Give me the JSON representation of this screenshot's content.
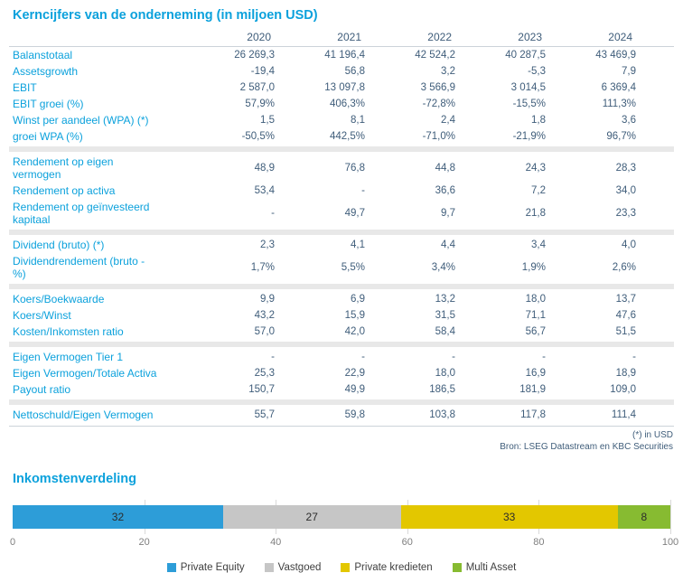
{
  "page": {
    "table_title": "Kerncijfers van de onderneming (in miljoen USD)",
    "footnote": "(*) in USD",
    "source": "Bron: LSEG Datastream en KBC Securities"
  },
  "table": {
    "years": [
      "2020",
      "2021",
      "2022",
      "2023",
      "2024"
    ],
    "sections": [
      {
        "rows": [
          {
            "label": "Balanstotaal",
            "values": [
              "26 269,3",
              "41 196,4",
              "42 524,2",
              "40 287,5",
              "43 469,9"
            ]
          },
          {
            "label": "Assetsgrowth",
            "values": [
              "-19,4",
              "56,8",
              "3,2",
              "-5,3",
              "7,9"
            ]
          },
          {
            "label": "EBIT",
            "values": [
              "2 587,0",
              "13 097,8",
              "3 566,9",
              "3 014,5",
              "6 369,4"
            ]
          },
          {
            "label": "EBIT groei (%)",
            "values": [
              "57,9%",
              "406,3%",
              "-72,8%",
              "-15,5%",
              "111,3%"
            ]
          },
          {
            "label": "Winst per aandeel (WPA) (*)",
            "values": [
              "1,5",
              "8,1",
              "2,4",
              "1,8",
              "3,6"
            ]
          },
          {
            "label": "groei WPA (%)",
            "values": [
              "-50,5%",
              "442,5%",
              "-71,0%",
              "-21,9%",
              "96,7%"
            ]
          }
        ]
      },
      {
        "rows": [
          {
            "label": "Rendement op eigen\nvermogen",
            "values": [
              "48,9",
              "76,8",
              "44,8",
              "24,3",
              "28,3"
            ]
          },
          {
            "label": "Rendement op activa",
            "values": [
              "53,4",
              "-",
              "36,6",
              "7,2",
              "34,0"
            ]
          },
          {
            "label": "Rendement op geïnvesteerd\nkapitaal",
            "values": [
              "-",
              "49,7",
              "9,7",
              "21,8",
              "23,3"
            ]
          }
        ]
      },
      {
        "rows": [
          {
            "label": "Dividend (bruto) (*)",
            "values": [
              "2,3",
              "4,1",
              "4,4",
              "3,4",
              "4,0"
            ]
          },
          {
            "label": "Dividendrendement (bruto -\n%)",
            "values": [
              "1,7%",
              "5,5%",
              "3,4%",
              "1,9%",
              "2,6%"
            ]
          }
        ]
      },
      {
        "rows": [
          {
            "label": "Koers/Boekwaarde",
            "values": [
              "9,9",
              "6,9",
              "13,2",
              "18,0",
              "13,7"
            ]
          },
          {
            "label": "Koers/Winst",
            "values": [
              "43,2",
              "15,9",
              "31,5",
              "71,1",
              "47,6"
            ]
          },
          {
            "label": "Kosten/Inkomsten ratio",
            "values": [
              "57,0",
              "42,0",
              "58,4",
              "56,7",
              "51,5"
            ]
          }
        ]
      },
      {
        "rows": [
          {
            "label": "Eigen Vermogen Tier 1",
            "values": [
              "-",
              "-",
              "-",
              "-",
              "-"
            ]
          },
          {
            "label": "Eigen Vermogen/Totale Activa",
            "values": [
              "25,3",
              "22,9",
              "18,0",
              "16,9",
              "18,9"
            ]
          },
          {
            "label": "Payout ratio",
            "values": [
              "150,7",
              "49,9",
              "186,5",
              "181,9",
              "109,0"
            ]
          }
        ]
      },
      {
        "rows": [
          {
            "label": "Nettoschuld/Eigen Vermogen",
            "values": [
              "55,7",
              "59,8",
              "103,8",
              "117,8",
              "111,4"
            ]
          }
        ]
      }
    ]
  },
  "chart": {
    "title": "Inkomstenverdeling"
  },
  "chart_data": {
    "type": "bar",
    "stacked": true,
    "orientation": "horizontal",
    "title": "Inkomstenverdeling",
    "series": [
      {
        "name": "Private Equity",
        "value": 32,
        "color": "#2d9dd8"
      },
      {
        "name": "Vastgoed",
        "value": 27,
        "color": "#c6c6c6"
      },
      {
        "name": "Private kredieten",
        "value": 33,
        "color": "#e3c700"
      },
      {
        "name": "Multi Asset",
        "value": 8,
        "color": "#87bb31"
      }
    ],
    "x_ticks": [
      "0",
      "20",
      "40",
      "60",
      "80",
      "100"
    ],
    "xlim": [
      0,
      100
    ],
    "grid": true,
    "legend_position": "bottom"
  },
  "colors": {
    "accent_blue": "#0ba1dc",
    "value_text": "#3f5d7a",
    "separator": "#e8e8e8",
    "gridline": "#d9d9d9"
  }
}
